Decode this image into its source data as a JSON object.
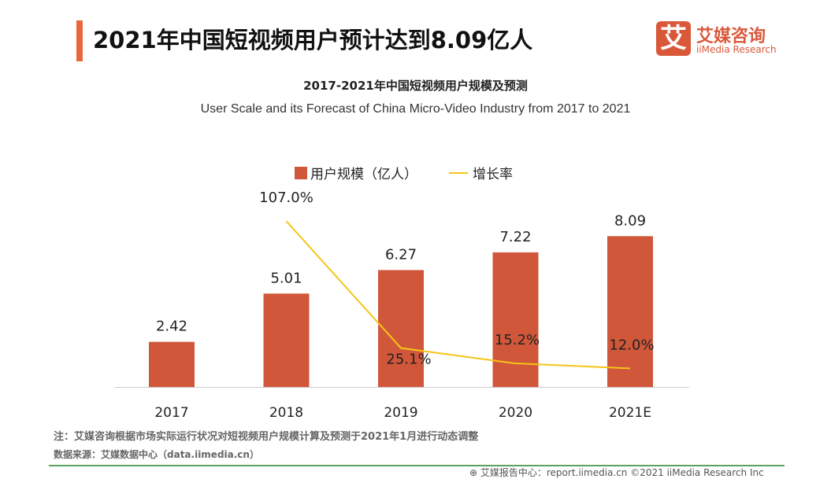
{
  "header": {
    "title": "2021年中国短视频用户预计达到8.09亿人",
    "logo_mark": "艾",
    "logo_cn": "艾媒咨询",
    "logo_en": "iiMedia Research"
  },
  "chart_data": {
    "type": "bar+line",
    "title": "2017-2021年中国短视频用户规模及预测",
    "subtitle": "User Scale and its Forecast of China Micro-Video Industry from 2017 to 2021",
    "categories": [
      "2017",
      "2018",
      "2019",
      "2020",
      "2021E"
    ],
    "series": [
      {
        "name": "用户规模（亿人）",
        "type": "bar",
        "color": "#d0573a",
        "values": [
          2.42,
          5.01,
          6.27,
          7.22,
          8.09
        ],
        "labels": [
          "2.42",
          "5.01",
          "6.27",
          "7.22",
          "8.09"
        ]
      },
      {
        "name": "增长率",
        "type": "line",
        "color": "#f5c518",
        "values": [
          null,
          107.0,
          25.1,
          15.2,
          12.0
        ],
        "labels": [
          "",
          "107.0%",
          "25.1%",
          "15.2%",
          "12.0%"
        ]
      }
    ],
    "legend": "top",
    "grid": false
  },
  "footer": {
    "note": "注：艾媒咨询根据市场实际运行状况对短视频用户规模计算及预测于2021年1月进行动态调整",
    "source": "数据来源：艾媒数据中心（data.iimedia.cn）",
    "credit": "艾媒报告中心：report.iimedia.cn   ©2021  iiMedia Research  Inc"
  }
}
